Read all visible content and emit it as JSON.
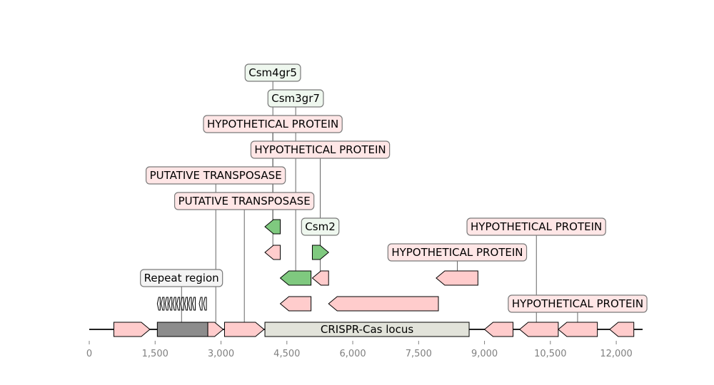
{
  "axis": {
    "min": 0,
    "max": 12600,
    "ticks": [
      {
        "value": 0,
        "label": "0"
      },
      {
        "value": 1500,
        "label": "1,500"
      },
      {
        "value": 3000,
        "label": "3,000"
      },
      {
        "value": 4500,
        "label": "4,500"
      },
      {
        "value": 6000,
        "label": "6,000"
      },
      {
        "value": 7500,
        "label": "7,500"
      },
      {
        "value": 9000,
        "label": "9,000"
      },
      {
        "value": 10500,
        "label": "10,500"
      },
      {
        "value": 12000,
        "label": "12,000"
      }
    ]
  },
  "colors": {
    "hypothetical": "#ffcccc",
    "csm": "#7fc97f",
    "repeat": "#8c8c8c",
    "locus": "#e2e3da",
    "label_pink_bg": "#ffe6e6",
    "label_green_bg": "#eef7ee",
    "label_gray_bg": "#f4f4f4"
  },
  "locus": {
    "label": "CRISPR-Cas locus",
    "start": 4000,
    "end": 8650
  },
  "repeat_region": {
    "start": 1550,
    "end": 2700,
    "unit_count": 12
  },
  "features": [
    {
      "id": "f1",
      "start": 560,
      "end": 1380,
      "strand": 1,
      "level": 0,
      "type": "hypothetical"
    },
    {
      "id": "repeat-array",
      "start": 1550,
      "end": 2700,
      "strand": 0,
      "level": 0,
      "type": "repeat"
    },
    {
      "id": "f2",
      "start": 2700,
      "end": 3050,
      "strand": 1,
      "level": 0,
      "type": "hypothetical"
    },
    {
      "id": "f3",
      "start": 3080,
      "end": 3980,
      "strand": 1,
      "level": 0,
      "type": "hypothetical"
    },
    {
      "id": "f4",
      "start": 9000,
      "end": 9650,
      "strand": -1,
      "level": 0,
      "type": "hypothetical"
    },
    {
      "id": "f5",
      "start": 9800,
      "end": 10680,
      "strand": -1,
      "level": 0,
      "type": "hypothetical"
    },
    {
      "id": "f6",
      "start": 10680,
      "end": 11570,
      "strand": -1,
      "level": 0,
      "type": "hypothetical"
    },
    {
      "id": "f7",
      "start": 11850,
      "end": 12400,
      "strand": -1,
      "level": 0,
      "type": "hypothetical"
    },
    {
      "id": "f8",
      "start": 4350,
      "end": 5050,
      "strand": -1,
      "level": 1,
      "type": "hypothetical"
    },
    {
      "id": "f9",
      "start": 5450,
      "end": 7950,
      "strand": -1,
      "level": 1,
      "type": "hypothetical"
    },
    {
      "id": "f10",
      "start": 4350,
      "end": 5050,
      "strand": -1,
      "level": 2,
      "type": "csm"
    },
    {
      "id": "f11",
      "start": 5080,
      "end": 5450,
      "strand": -1,
      "level": 2,
      "type": "hypothetical"
    },
    {
      "id": "f12",
      "start": 7900,
      "end": 8850,
      "strand": -1,
      "level": 2,
      "type": "hypothetical"
    },
    {
      "id": "f13",
      "start": 4000,
      "end": 4350,
      "strand": -1,
      "level": 3,
      "type": "hypothetical"
    },
    {
      "id": "f14",
      "start": 5080,
      "end": 5450,
      "strand": 1,
      "level": 3,
      "type": "csm"
    },
    {
      "id": "f15",
      "start": 4000,
      "end": 4350,
      "strand": -1,
      "level": 4,
      "type": "csm"
    }
  ],
  "labels": [
    {
      "text": "Csm4gr5",
      "x": 4180,
      "level": 10,
      "anchor_level": 4,
      "style": "green"
    },
    {
      "text": "Csm3gr7",
      "x": 4700,
      "level": 9,
      "anchor_level": 2,
      "style": "green"
    },
    {
      "text": "HYPOTHETICAL PROTEIN",
      "x": 4180,
      "level": 8,
      "anchor_level": 3,
      "style": "pink"
    },
    {
      "text": "HYPOTHETICAL PROTEIN",
      "x": 5260,
      "level": 7,
      "anchor_level": 2,
      "style": "pink"
    },
    {
      "text": "PUTATIVE TRANSPOSASE",
      "x": 2880,
      "level": 6,
      "anchor_level": 0,
      "style": "pink"
    },
    {
      "text": "PUTATIVE TRANSPOSASE",
      "x": 3530,
      "level": 5,
      "anchor_level": 0,
      "style": "pink"
    },
    {
      "text": "Csm2",
      "x": 5260,
      "level": 4,
      "anchor_level": 3,
      "style": "green"
    },
    {
      "text": "HYPOTHETICAL PROTEIN",
      "x": 10180,
      "level": 4,
      "anchor_level": 0,
      "style": "pink"
    },
    {
      "text": "HYPOTHETICAL PROTEIN",
      "x": 8380,
      "level": 3,
      "anchor_level": 2,
      "style": "pink"
    },
    {
      "text": "Repeat region",
      "x": 2100,
      "level": 2,
      "anchor_level": 0,
      "style": "gray"
    },
    {
      "text": "HYPOTHETICAL PROTEIN",
      "x": 11120,
      "level": 1,
      "anchor_level": 0,
      "style": "pink"
    }
  ]
}
